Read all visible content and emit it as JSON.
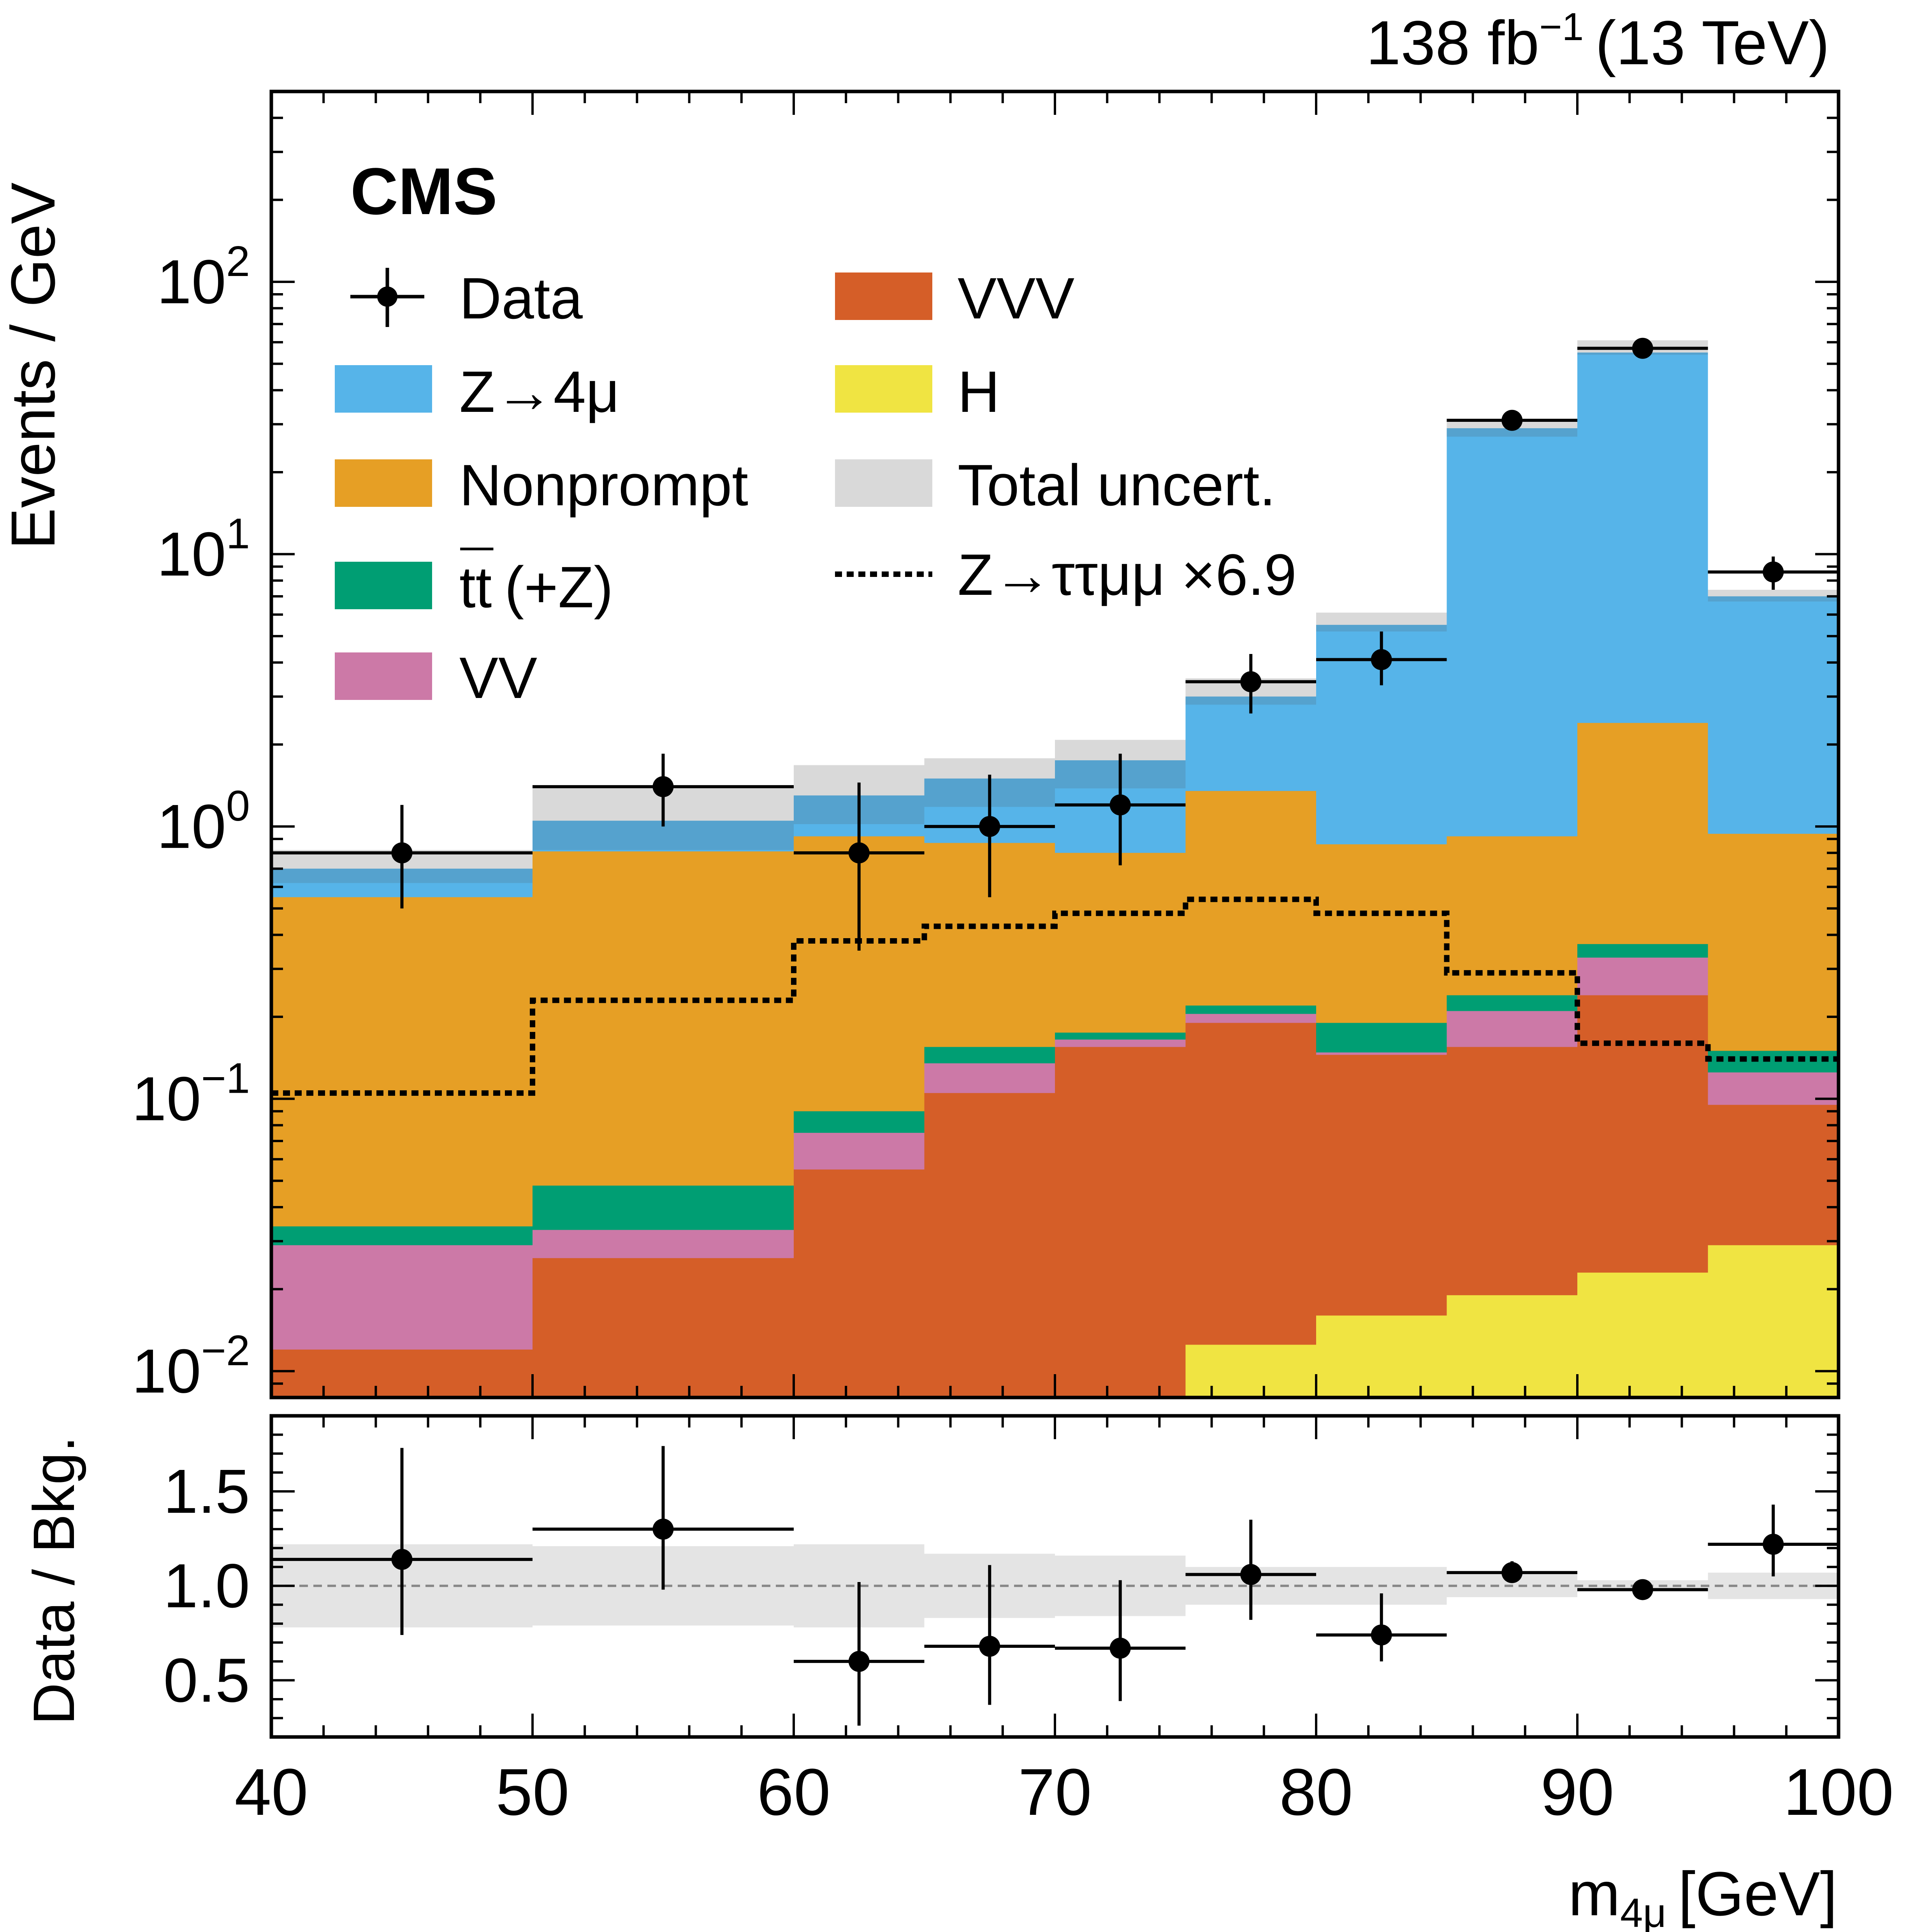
{
  "header": {
    "lumi": "138 fb",
    "lumi_exp": "−1",
    "energy": "(13 TeV)"
  },
  "brand": "CMS",
  "legend": {
    "data": "Data",
    "z4mu": "Z→4μ",
    "nonprompt": "Nonprompt",
    "ttbar_main": "tt",
    "ttbar_bar_char": "¯",
    "ttbar_suffix": "(+Z)",
    "vv": "VV",
    "vvv": "VVV",
    "h": "H",
    "unc": "Total uncert.",
    "signal": "Z→ττμμ ×6.9"
  },
  "chart_data": [
    {
      "type": "bar",
      "stacked": true,
      "bin_edges": [
        40,
        50,
        60,
        65,
        70,
        75,
        80,
        85,
        90,
        95,
        100
      ],
      "ylabel": "Events / GeV",
      "yscale": "log",
      "ylim": [
        0.008,
        500
      ],
      "yticks": [
        {
          "value": 0.01,
          "base": "10",
          "exp": "−2"
        },
        {
          "value": 0.1,
          "base": "10",
          "exp": "−1"
        },
        {
          "value": 1,
          "base": "10",
          "exp": "0"
        },
        {
          "value": 10,
          "base": "10",
          "exp": "1"
        },
        {
          "value": 100,
          "base": "10",
          "exp": "2"
        }
      ],
      "stack": [
        {
          "name": "H",
          "color": "#f0e442",
          "values": [
            0.0,
            0.0,
            0.0,
            0.0,
            0.0,
            0.0125,
            0.016,
            0.019,
            0.023,
            0.029
          ]
        },
        {
          "name": "VVV",
          "color": "#d55e28",
          "values": [
            0.012,
            0.026,
            0.055,
            0.105,
            0.155,
            0.19,
            0.145,
            0.155,
            0.24,
            0.095
          ]
        },
        {
          "name": "VV",
          "color": "#cc79a7",
          "values": [
            0.029,
            0.033,
            0.075,
            0.135,
            0.165,
            0.205,
            0.148,
            0.21,
            0.33,
            0.125
          ]
        },
        {
          "name": "tt (+Z)",
          "color": "#009e73",
          "values": [
            0.034,
            0.048,
            0.09,
            0.155,
            0.175,
            0.22,
            0.19,
            0.24,
            0.37,
            0.15
          ]
        },
        {
          "name": "Nonprompt",
          "color": "#e69f25",
          "values": [
            0.55,
            0.81,
            0.92,
            0.87,
            0.8,
            1.35,
            0.86,
            0.92,
            2.4,
            0.94
          ]
        },
        {
          "name": "Z→4μ",
          "color": "#56b4e9",
          "values": [
            0.7,
            1.05,
            1.3,
            1.5,
            1.75,
            3.0,
            5.5,
            29.0,
            55.0,
            7.0
          ]
        }
      ],
      "uncertainty": {
        "name": "Total uncert.",
        "color": "#d9d9d9",
        "low": [
          0.62,
          0.82,
          1.02,
          1.18,
          1.38,
          2.8,
          5.2,
          27.0,
          54.0,
          6.7
        ],
        "high": [
          0.82,
          1.38,
          1.68,
          1.78,
          2.08,
          3.5,
          6.1,
          30.5,
          61.0,
          7.4
        ]
      },
      "signal": {
        "name": "Z→ττμμ ×6.9",
        "values": [
          0.105,
          0.23,
          0.38,
          0.43,
          0.48,
          0.54,
          0.48,
          0.29,
          0.16,
          0.14
        ]
      },
      "data_points": {
        "name": "Data",
        "x": [
          45,
          55,
          62.5,
          67.5,
          72.5,
          77.5,
          82.5,
          87.5,
          92.5,
          97.5
        ],
        "y": [
          0.8,
          1.4,
          0.8,
          1.0,
          1.2,
          3.4,
          4.1,
          31.0,
          57.0,
          8.6
        ],
        "y_low": [
          0.5,
          1.0,
          0.35,
          0.55,
          0.72,
          2.6,
          3.3,
          29.5,
          54.5,
          7.4
        ],
        "y_high": [
          1.2,
          1.85,
          1.45,
          1.55,
          1.85,
          4.3,
          5.2,
          32.5,
          59.0,
          9.8
        ],
        "x_err": [
          5,
          5,
          2.5,
          2.5,
          2.5,
          2.5,
          2.5,
          2.5,
          2.5,
          2.5
        ]
      }
    },
    {
      "type": "scatter",
      "xlabel": "m",
      "xlabel_sub": "4μ",
      "xlabel_unit": "[GeV]",
      "ylabel": "Data / Bkg.",
      "xlim": [
        40,
        100
      ],
      "ylim": [
        0.2,
        1.9
      ],
      "xticks": [
        "40",
        "50",
        "60",
        "70",
        "80",
        "90",
        "100"
      ],
      "yticks": [
        "0.5",
        "1.0",
        "1.5"
      ],
      "reference_line": 1.0,
      "band": {
        "low": [
          0.78,
          0.79,
          0.78,
          0.83,
          0.84,
          0.9,
          0.9,
          0.94,
          0.97,
          0.93
        ],
        "high": [
          1.22,
          1.21,
          1.22,
          1.17,
          1.16,
          1.1,
          1.1,
          1.06,
          1.03,
          1.07
        ]
      },
      "points": {
        "x": [
          45,
          55,
          62.5,
          67.5,
          72.5,
          77.5,
          82.5,
          87.5,
          92.5,
          97.5
        ],
        "y": [
          1.14,
          1.3,
          0.6,
          0.68,
          0.67,
          1.06,
          0.74,
          1.07,
          0.98,
          1.22
        ],
        "y_low": [
          0.74,
          0.98,
          0.26,
          0.37,
          0.39,
          0.82,
          0.6,
          1.02,
          0.96,
          1.05
        ],
        "y_high": [
          1.73,
          1.74,
          1.02,
          1.11,
          1.03,
          1.35,
          0.96,
          1.13,
          1.0,
          1.43
        ],
        "x_err": [
          5,
          5,
          2.5,
          2.5,
          2.5,
          2.5,
          2.5,
          2.5,
          2.5,
          2.5
        ]
      }
    }
  ]
}
